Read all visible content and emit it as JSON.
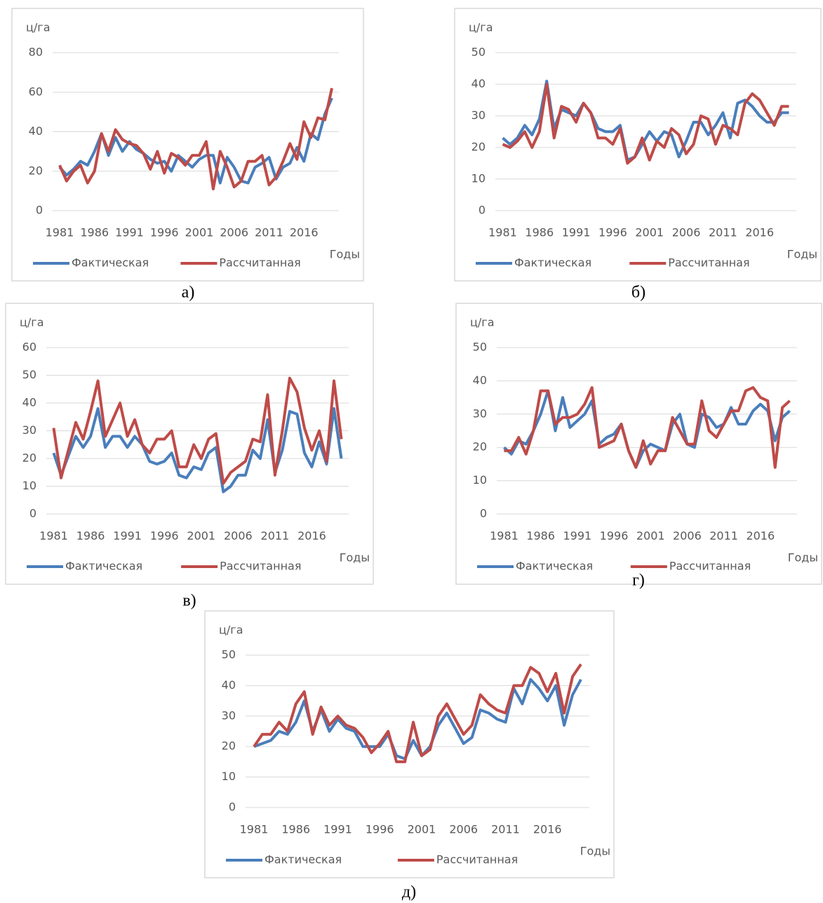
{
  "chart_data": [
    {
      "type": "line",
      "caption": "а)",
      "ylabel": "ц/га",
      "xlabel": "Годы",
      "x": [
        1981,
        1982,
        1983,
        1984,
        1985,
        1986,
        1987,
        1988,
        1989,
        1990,
        1991,
        1992,
        1993,
        1994,
        1995,
        1996,
        1997,
        1998,
        1999,
        2000,
        2001,
        2002,
        2003,
        2004,
        2005,
        2006,
        2007,
        2008,
        2009,
        2010,
        2011,
        2012,
        2013,
        2014,
        2015,
        2016,
        2017,
        2018,
        2019,
        2020
      ],
      "xlim": [
        1980,
        2021
      ],
      "xticks": [
        1981,
        1986,
        1991,
        1996,
        2001,
        2006,
        2011,
        2016
      ],
      "ylim": [
        0,
        80
      ],
      "yticks": [
        0,
        20,
        40,
        60,
        80
      ],
      "grid": true,
      "series": [
        {
          "name": "Фактическая",
          "color": "#4a7ebb",
          "values": [
            22,
            18,
            21,
            25,
            23,
            30,
            39,
            28,
            37,
            30,
            35,
            31,
            29,
            26,
            24,
            25,
            20,
            28,
            25,
            22,
            26,
            28,
            28,
            14,
            27,
            22,
            15,
            14,
            22,
            24,
            27,
            16,
            22,
            24,
            32,
            25,
            39,
            36,
            49,
            57
          ]
        },
        {
          "name": "Рассчитанная",
          "color": "#be4b48",
          "values": [
            23,
            15,
            20,
            23,
            14,
            20,
            39,
            30,
            41,
            36,
            34,
            33,
            29,
            21,
            30,
            19,
            29,
            27,
            23,
            28,
            28,
            35,
            11,
            30,
            22,
            12,
            15,
            25,
            25,
            28,
            13,
            17,
            25,
            34,
            26,
            45,
            37,
            47,
            46,
            62
          ]
        }
      ]
    },
    {
      "type": "line",
      "caption": "б)",
      "ylabel": "ц/га",
      "xlabel": "Годы",
      "x": [
        1981,
        1982,
        1983,
        1984,
        1985,
        1986,
        1987,
        1988,
        1989,
        1990,
        1991,
        1992,
        1993,
        1994,
        1995,
        1996,
        1997,
        1998,
        1999,
        2000,
        2001,
        2002,
        2003,
        2004,
        2005,
        2006,
        2007,
        2008,
        2009,
        2010,
        2011,
        2012,
        2013,
        2014,
        2015,
        2016,
        2017,
        2018,
        2019,
        2020
      ],
      "xlim": [
        1980,
        2021
      ],
      "xticks": [
        1981,
        1986,
        1991,
        1996,
        2001,
        2006,
        2011,
        2016
      ],
      "ylim": [
        0,
        50
      ],
      "yticks": [
        0,
        10,
        20,
        30,
        40,
        50
      ],
      "grid": true,
      "series": [
        {
          "name": "Фактическая",
          "color": "#4a7ebb",
          "values": [
            23,
            21,
            23,
            27,
            24,
            29,
            41,
            26,
            32,
            31,
            30,
            34,
            31,
            26,
            25,
            25,
            27,
            16,
            17,
            21,
            25,
            22,
            25,
            24,
            17,
            22,
            28,
            28,
            24,
            27,
            31,
            23,
            34,
            35,
            33,
            30,
            28,
            28,
            31,
            31
          ]
        },
        {
          "name": "Рассчитанная",
          "color": "#be4b48",
          "values": [
            21,
            20,
            22,
            25,
            20,
            25,
            40,
            23,
            33,
            32,
            28,
            34,
            31,
            23,
            23,
            21,
            26,
            15,
            17,
            23,
            16,
            22,
            20,
            26,
            24,
            18,
            21,
            30,
            29,
            21,
            27,
            26,
            24,
            34,
            37,
            35,
            31,
            27,
            33,
            33
          ]
        }
      ]
    },
    {
      "type": "line",
      "caption": "в)",
      "ylabel": "ц/га",
      "xlabel": "Годы",
      "x": [
        1981,
        1982,
        1983,
        1984,
        1985,
        1986,
        1987,
        1988,
        1989,
        1990,
        1991,
        1992,
        1993,
        1994,
        1995,
        1996,
        1997,
        1998,
        1999,
        2000,
        2001,
        2002,
        2003,
        2004,
        2005,
        2006,
        2007,
        2008,
        2009,
        2010,
        2011,
        2012,
        2013,
        2014,
        2015,
        2016,
        2017,
        2018,
        2019,
        2020
      ],
      "xlim": [
        1980,
        2021
      ],
      "xticks": [
        1981,
        1986,
        1991,
        1996,
        2001,
        2006,
        2011,
        2016
      ],
      "ylim": [
        0,
        60
      ],
      "yticks": [
        0,
        10,
        20,
        30,
        40,
        50,
        60
      ],
      "grid": true,
      "series": [
        {
          "name": "Фактическая",
          "color": "#4a7ebb",
          "values": [
            22,
            14,
            21,
            28,
            24,
            28,
            38,
            24,
            28,
            28,
            24,
            28,
            25,
            19,
            18,
            19,
            22,
            14,
            13,
            17,
            16,
            22,
            24,
            8,
            10,
            14,
            14,
            23,
            20,
            34,
            15,
            23,
            37,
            36,
            22,
            17,
            26,
            18,
            38,
            20
          ]
        },
        {
          "name": "Рассчитанная",
          "color": "#be4b48",
          "values": [
            31,
            13,
            23,
            33,
            27,
            37,
            48,
            28,
            34,
            40,
            28,
            34,
            25,
            22,
            27,
            27,
            30,
            17,
            17,
            25,
            20,
            27,
            29,
            11,
            15,
            17,
            19,
            27,
            26,
            43,
            14,
            30,
            49,
            44,
            31,
            23,
            30,
            19,
            48,
            27
          ]
        }
      ]
    },
    {
      "type": "line",
      "caption": "г)",
      "ylabel": "ц/га",
      "xlabel": "Годы",
      "x": [
        1981,
        1982,
        1983,
        1984,
        1985,
        1986,
        1987,
        1988,
        1989,
        1990,
        1991,
        1992,
        1993,
        1994,
        1995,
        1996,
        1997,
        1998,
        1999,
        2000,
        2001,
        2002,
        2003,
        2004,
        2005,
        2006,
        2007,
        2008,
        2009,
        2010,
        2011,
        2012,
        2013,
        2014,
        2015,
        2016,
        2017,
        2018,
        2019,
        2020
      ],
      "xlim": [
        1980,
        2021
      ],
      "xticks": [
        1981,
        1986,
        1991,
        1996,
        2001,
        2006,
        2011,
        2016
      ],
      "ylim": [
        0,
        50
      ],
      "yticks": [
        0,
        10,
        20,
        30,
        40,
        50
      ],
      "grid": true,
      "series": [
        {
          "name": "Фактическая",
          "color": "#4a7ebb",
          "values": [
            20,
            18,
            22,
            21,
            25,
            30,
            37,
            25,
            35,
            26,
            28,
            30,
            34,
            21,
            23,
            24,
            27,
            19,
            14,
            19,
            21,
            20,
            19,
            27,
            30,
            21,
            20,
            30,
            29,
            26,
            27,
            32,
            27,
            27,
            31,
            33,
            31,
            22,
            29,
            31
          ]
        },
        {
          "name": "Рассчитанная",
          "color": "#be4b48",
          "values": [
            19,
            19,
            23,
            18,
            25,
            37,
            37,
            27,
            29,
            29,
            30,
            33,
            38,
            20,
            21,
            22,
            27,
            19,
            14,
            22,
            15,
            19,
            19,
            29,
            25,
            21,
            21,
            34,
            25,
            23,
            27,
            31,
            31,
            37,
            38,
            35,
            34,
            14,
            32,
            34
          ]
        }
      ]
    },
    {
      "type": "line",
      "caption": "д)",
      "ylabel": "ц/га",
      "xlabel": "Годы",
      "x": [
        1981,
        1982,
        1983,
        1984,
        1985,
        1986,
        1987,
        1988,
        1989,
        1990,
        1991,
        1992,
        1993,
        1994,
        1995,
        1996,
        1997,
        1998,
        1999,
        2000,
        2001,
        2002,
        2003,
        2004,
        2005,
        2006,
        2007,
        2008,
        2009,
        2010,
        2011,
        2012,
        2013,
        2014,
        2015,
        2016,
        2017,
        2018,
        2019,
        2020
      ],
      "xlim": [
        1980,
        2021
      ],
      "xticks": [
        1981,
        1986,
        1991,
        1996,
        2001,
        2006,
        2011,
        2016
      ],
      "ylim": [
        0,
        50
      ],
      "yticks": [
        0,
        10,
        20,
        30,
        40,
        50
      ],
      "grid": true,
      "series": [
        {
          "name": "Фактическая",
          "color": "#4a7ebb",
          "values": [
            20,
            21,
            22,
            25,
            24,
            28,
            35,
            25,
            32,
            25,
            29,
            26,
            25,
            20,
            20,
            20,
            24,
            17,
            16,
            22,
            17,
            20,
            27,
            31,
            26,
            21,
            23,
            32,
            31,
            29,
            28,
            39,
            34,
            42,
            39,
            35,
            40,
            27,
            37,
            42
          ]
        },
        {
          "name": "Рассчитанная",
          "color": "#be4b48",
          "values": [
            20,
            24,
            24,
            28,
            25,
            34,
            38,
            24,
            33,
            27,
            30,
            27,
            26,
            23,
            18,
            21,
            25,
            15,
            15,
            28,
            17,
            19,
            30,
            34,
            29,
            24,
            27,
            37,
            34,
            32,
            31,
            40,
            40,
            46,
            44,
            38,
            44,
            31,
            43,
            47
          ]
        }
      ]
    }
  ]
}
